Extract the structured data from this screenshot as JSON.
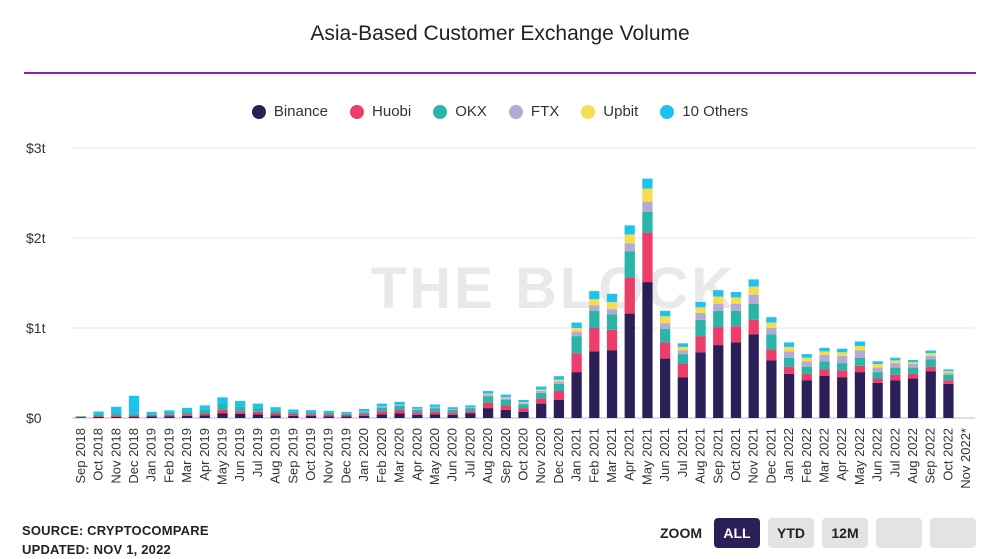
{
  "chart_data": {
    "type": "bar",
    "stacked": true,
    "title": "Asia-Based Customer Exchange Volume",
    "watermark": "THE BLOCK",
    "y_ticks": [
      "$0",
      "$1t",
      "$2t",
      "$3t"
    ],
    "ylim": [
      0,
      3000
    ],
    "y_unit": "billions USD",
    "grid": true,
    "legend_position": "top",
    "categories": [
      "Sep 2018",
      "Oct 2018",
      "Nov 2018",
      "Dec 2018",
      "Jan 2019",
      "Feb 2019",
      "Mar 2019",
      "Apr 2019",
      "May 2019",
      "Jun 2019",
      "Jul 2019",
      "Aug 2019",
      "Sep 2019",
      "Oct 2019",
      "Nov 2019",
      "Dec 2019",
      "Jan 2020",
      "Feb 2020",
      "Mar 2020",
      "Apr 2020",
      "May 2020",
      "Jun 2020",
      "Jul 2020",
      "Aug 2020",
      "Sep 2020",
      "Oct 2020",
      "Nov 2020",
      "Dec 2020",
      "Jan 2021",
      "Feb 2021",
      "Mar 2021",
      "Apr 2021",
      "May 2021",
      "Jun 2021",
      "Jul 2021",
      "Aug 2021",
      "Sep 2021",
      "Oct 2021",
      "Nov 2021",
      "Dec 2021",
      "Jan 2022",
      "Feb 2022",
      "Mar 2022",
      "Apr 2022",
      "May 2022",
      "Jun 2022",
      "Jul 2022",
      "Aug 2022",
      "Sep 2022",
      "Oct 2022",
      "Nov 2022*"
    ],
    "series": [
      {
        "name": "Binance",
        "color": "#2c1f57",
        "values": [
          8,
          12,
          12,
          15,
          18,
          20,
          25,
          30,
          50,
          45,
          40,
          30,
          25,
          22,
          20,
          18,
          25,
          40,
          50,
          35,
          40,
          35,
          50,
          110,
          90,
          70,
          160,
          200,
          510,
          740,
          750,
          1160,
          1510,
          660,
          450,
          730,
          810,
          840,
          930,
          640,
          490,
          420,
          470,
          450,
          510,
          390,
          420,
          440,
          520,
          380,
          null
        ]
      },
      {
        "name": "Huobi",
        "color": "#ec3d6b",
        "values": [
          4,
          10,
          18,
          12,
          10,
          15,
          18,
          20,
          40,
          30,
          30,
          25,
          20,
          20,
          20,
          15,
          20,
          35,
          40,
          25,
          30,
          25,
          25,
          60,
          50,
          40,
          60,
          100,
          210,
          260,
          230,
          400,
          550,
          180,
          150,
          180,
          200,
          180,
          160,
          120,
          80,
          70,
          70,
          80,
          70,
          50,
          60,
          50,
          50,
          40,
          null
        ]
      },
      {
        "name": "OKX",
        "color": "#2bb5a8",
        "values": [
          4,
          20,
          25,
          20,
          15,
          20,
          30,
          40,
          60,
          55,
          40,
          30,
          25,
          20,
          20,
          15,
          20,
          40,
          45,
          30,
          40,
          30,
          35,
          70,
          60,
          40,
          60,
          80,
          190,
          190,
          170,
          290,
          230,
          150,
          110,
          180,
          180,
          170,
          180,
          170,
          100,
          80,
          90,
          80,
          90,
          70,
          80,
          70,
          80,
          60,
          null
        ]
      },
      {
        "name": "FTX",
        "color": "#b3aad6",
        "values": [
          null,
          null,
          null,
          null,
          null,
          null,
          null,
          null,
          null,
          null,
          null,
          null,
          null,
          null,
          null,
          null,
          10,
          15,
          15,
          12,
          15,
          10,
          10,
          20,
          20,
          15,
          20,
          25,
          50,
          60,
          60,
          90,
          110,
          60,
          40,
          80,
          80,
          80,
          100,
          70,
          70,
          60,
          70,
          80,
          80,
          50,
          50,
          40,
          40,
          20,
          null
        ]
      },
      {
        "name": "Upbit",
        "color": "#f4de4f",
        "values": [
          null,
          null,
          null,
          null,
          null,
          null,
          null,
          null,
          null,
          null,
          null,
          null,
          null,
          null,
          null,
          null,
          null,
          null,
          null,
          null,
          null,
          null,
          null,
          10,
          10,
          10,
          15,
          20,
          40,
          70,
          80,
          100,
          150,
          80,
          40,
          60,
          80,
          70,
          90,
          60,
          50,
          40,
          40,
          40,
          50,
          40,
          30,
          20,
          30,
          20,
          null
        ]
      },
      {
        "name": "10 Others",
        "color": "#1ec2f0",
        "values": [
          5,
          30,
          70,
          200,
          25,
          30,
          40,
          50,
          80,
          60,
          50,
          35,
          25,
          25,
          20,
          20,
          25,
          30,
          30,
          20,
          25,
          20,
          20,
          30,
          30,
          25,
          35,
          40,
          60,
          90,
          90,
          100,
          110,
          60,
          40,
          60,
          70,
          60,
          80,
          60,
          50,
          40,
          40,
          40,
          50,
          30,
          30,
          25,
          30,
          20,
          null
        ]
      }
    ]
  },
  "footer": {
    "source": "SOURCE: CRYPTOCOMPARE",
    "updated": "UPDATED: NOV 1, 2022"
  },
  "zoom": {
    "label": "ZOOM",
    "buttons": [
      "ALL",
      "YTD",
      "12M",
      "",
      ""
    ],
    "active": "ALL"
  }
}
